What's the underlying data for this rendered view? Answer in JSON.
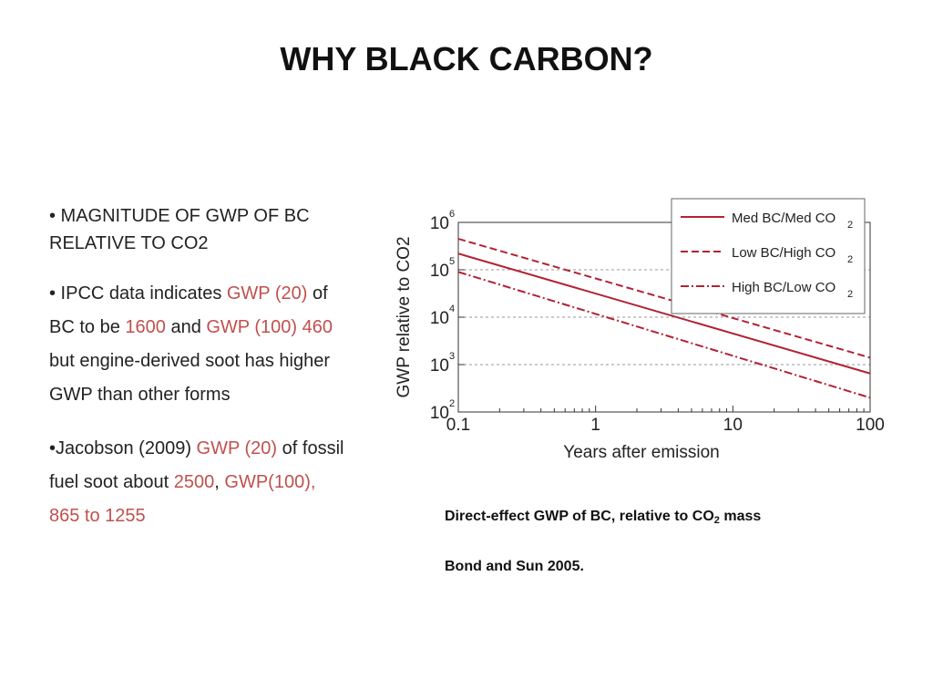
{
  "title": "WHY BLACK CARBON?",
  "bullets": {
    "b1": {
      "text": "• MAGNITUDE OF GWP OF BC RELATIVE TO CO2"
    },
    "b2": {
      "p1": "• IPCC data indicates ",
      "h1": "GWP (20)",
      "p2": " of BC to be ",
      "h2": "1600",
      "p3": " and ",
      "h3": "GWP (100) 460",
      "p4": " but engine-derived soot has higher GWP than other forms"
    },
    "b3": {
      "p1": "•Jacobson (2009) ",
      "h1": "GWP (20)",
      "p2": " of fossil fuel soot about ",
      "h2": "2500",
      "p3": ", ",
      "h3": "GWP(100), 865 to 1255"
    }
  },
  "caption": {
    "main": "Direct-effect GWP of BC, relative to CO",
    "sub": "2",
    "tail": " mass",
    "source": "Bond and Sun 2005."
  },
  "chart_data": {
    "type": "line",
    "xlabel": "Years after emission",
    "ylabel": "GWP relative to CO2",
    "x_scale": "log",
    "y_scale": "log",
    "xlim": [
      0.1,
      100
    ],
    "ylim": [
      100,
      1000000
    ],
    "x_ticks": [
      "0.1",
      "1",
      "10",
      "100"
    ],
    "y_ticks": [
      "10",
      "10",
      "10",
      "10",
      "10"
    ],
    "y_tick_exponents": [
      "2",
      "3",
      "4",
      "5",
      "6"
    ],
    "grid": "horizontal dashed",
    "legend_position": "top-right",
    "colors": {
      "series": "#b22234",
      "grid": "#999999"
    },
    "series": [
      {
        "name": "Med BC/Med CO2",
        "style": "solid",
        "x": [
          0.1,
          100
        ],
        "y": [
          220000,
          650
        ]
      },
      {
        "name": "Low BC/High CO2",
        "style": "dashed",
        "x": [
          0.1,
          100
        ],
        "y": [
          450000,
          1400
        ]
      },
      {
        "name": "High BC/Low CO2",
        "style": "dash-dot",
        "x": [
          0.1,
          100
        ],
        "y": [
          90000,
          200
        ]
      }
    ],
    "legend_labels": [
      {
        "main": "Med BC/Med CO",
        "sub": "2"
      },
      {
        "main": "Low BC/High CO",
        "sub": "2"
      },
      {
        "main": "High BC/Low CO",
        "sub": "2"
      }
    ]
  }
}
